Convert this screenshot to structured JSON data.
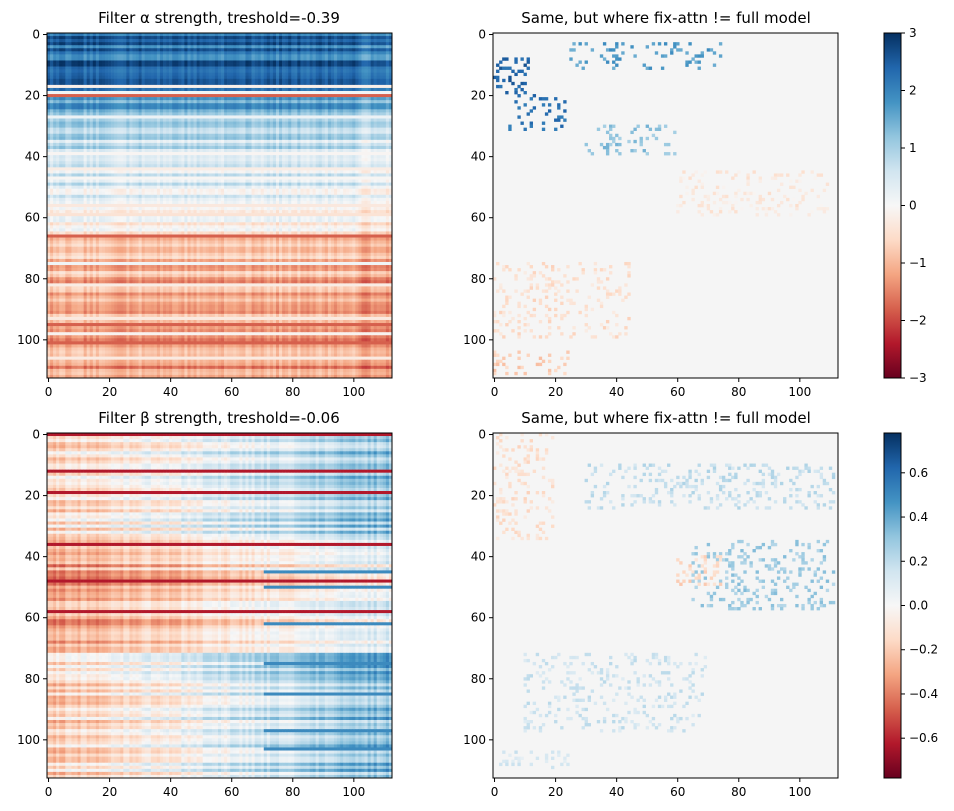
{
  "chart_data": [
    {
      "type": "heatmap",
      "title": "Filter α strength, treshold=-0.39",
      "size": 113,
      "xticks": [
        0,
        20,
        40,
        60,
        80,
        100
      ],
      "yticks": [
        0,
        20,
        40,
        60,
        80,
        100
      ],
      "colormap": "RdBu",
      "vrange": [
        -3,
        3
      ],
      "description_values": "dense matrix: strongly positive (blue) in rows 0-35, near zero rows 35-65, negative (red) rows 65-113 with alternating stripes"
    },
    {
      "type": "heatmap",
      "title": "Same, but where fix-attn != full model",
      "size": 113,
      "xticks": [
        0,
        20,
        40,
        60,
        80,
        100
      ],
      "yticks": [
        0,
        20,
        40,
        60,
        80,
        100
      ],
      "colormap": "RdBu",
      "vrange": [
        -3,
        3
      ]
    },
    {
      "type": "heatmap",
      "title": "Filter β strength, treshold=-0.06",
      "size": 113,
      "xticks": [
        0,
        20,
        40,
        60,
        80,
        100
      ],
      "yticks": [
        0,
        20,
        40,
        60,
        80,
        100
      ],
      "colormap": "RdBu",
      "vrange": [
        -0.78,
        0.78
      ]
    },
    {
      "type": "heatmap",
      "title": "Same, but where fix-attn != full model",
      "size": 113,
      "xticks": [
        0,
        20,
        40,
        60,
        80,
        100
      ],
      "yticks": [
        0,
        20,
        40,
        60,
        80,
        100
      ],
      "colormap": "RdBu",
      "vrange": [
        -0.78,
        0.78
      ]
    }
  ],
  "colorbars": [
    {
      "ticks": [
        3,
        2,
        1,
        0,
        -1,
        -2,
        -3
      ],
      "labels": [
        "3",
        "2",
        "1",
        "0",
        "−1",
        "−2",
        "−3"
      ],
      "range": [
        -3,
        3
      ]
    },
    {
      "ticks": [
        0.6,
        0.4,
        0.2,
        0.0,
        -0.2,
        -0.4,
        -0.6
      ],
      "labels": [
        "0.6",
        "0.4",
        "0.2",
        "0.0",
        "−0.2",
        "−0.4",
        "−0.6"
      ],
      "range": [
        -0.78,
        0.78
      ]
    }
  ]
}
